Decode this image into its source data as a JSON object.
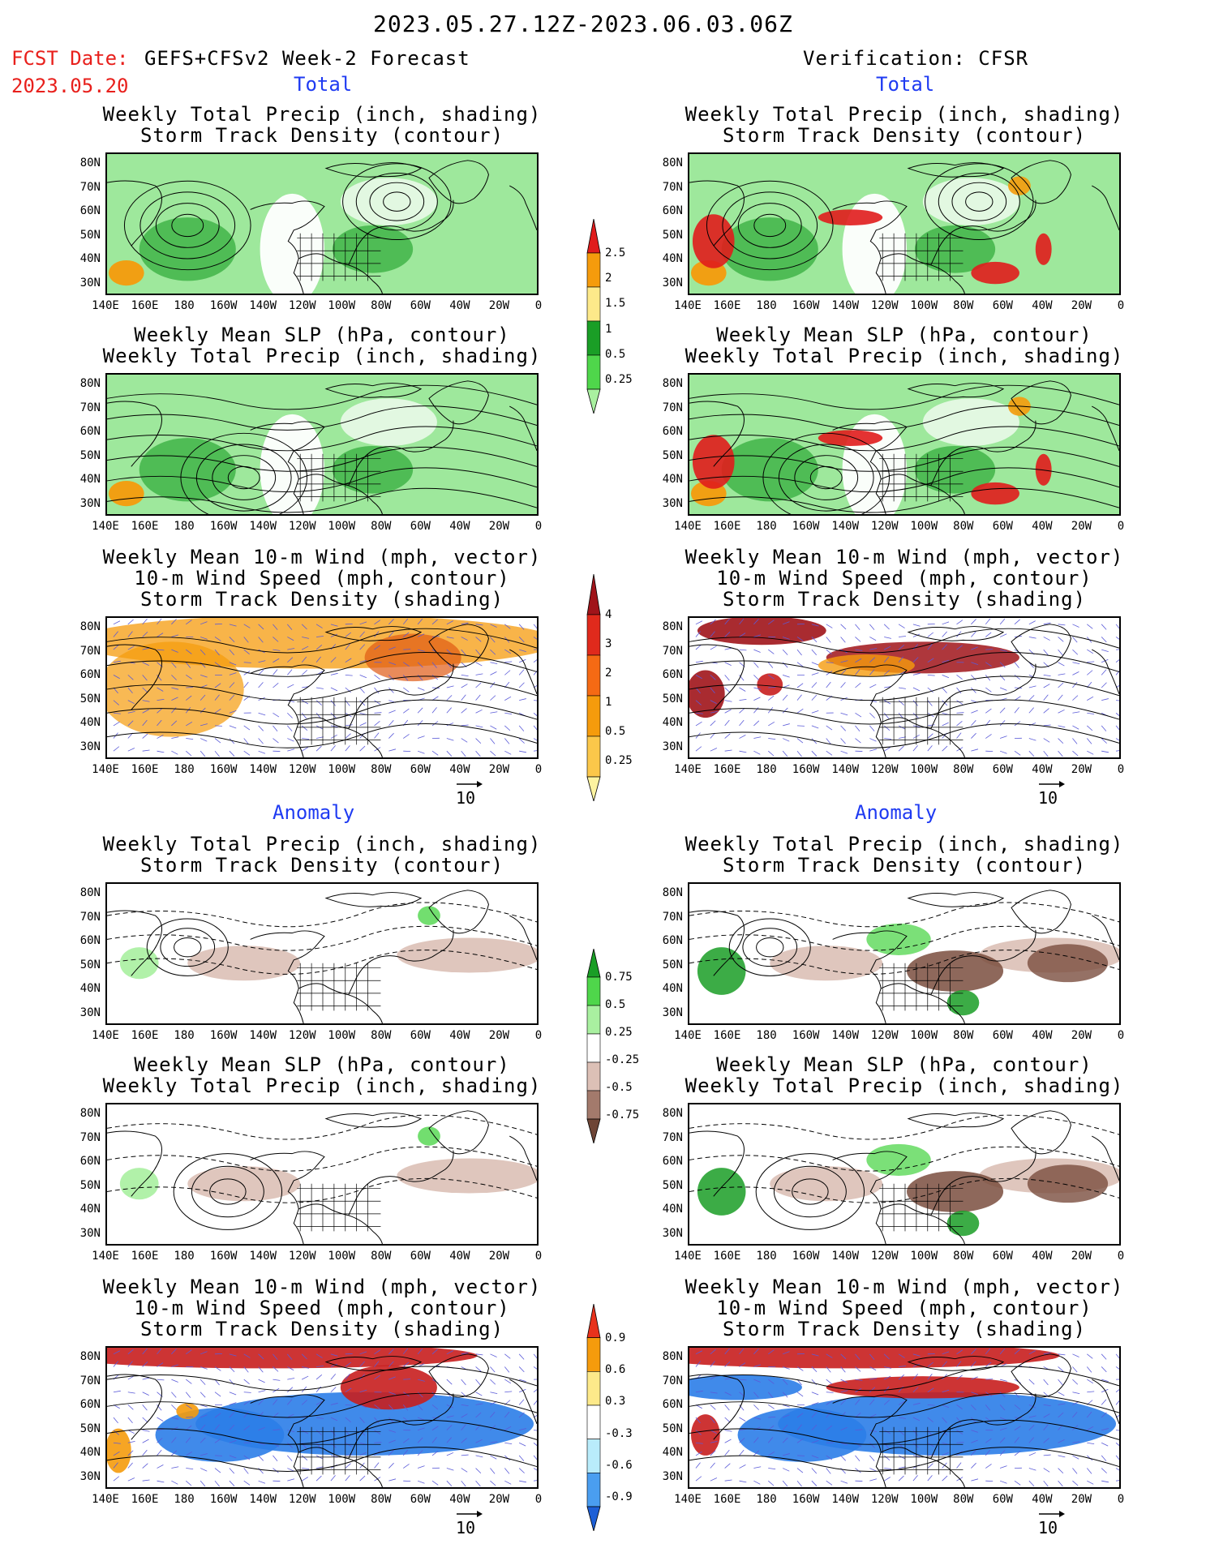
{
  "header": {
    "date_range": "2023.05.27.12Z-2023.06.03.06Z",
    "fcst_label": "FCST Date:",
    "fcst_date": "2023.05.20",
    "forecast_title": "GEFS+CFSv2 Week-2 Forecast",
    "verification_title": "Verification: CFSR"
  },
  "sections": {
    "total": "Total",
    "anomaly": "Anomaly"
  },
  "titles": {
    "precip_storm": [
      "Weekly Total Precip (inch, shading)",
      "Storm Track Density (contour)"
    ],
    "slp_precip": [
      "Weekly Mean SLP (hPa, contour)",
      "Weekly Total Precip (inch, shading)"
    ],
    "wind": [
      "Weekly Mean 10-m Wind (mph, vector)",
      "10-m Wind Speed (mph, contour)",
      "Storm Track Density (shading)"
    ]
  },
  "axes": {
    "lat_ticks": [
      "80N",
      "70N",
      "60N",
      "50N",
      "40N",
      "30N"
    ],
    "lon_ticks": [
      "140E",
      "160E",
      "180",
      "160W",
      "140W",
      "120W",
      "100W",
      "80W",
      "60W",
      "40W",
      "20W",
      "0"
    ]
  },
  "vector_ref": "10",
  "colorbars": {
    "total_precip": {
      "labels": [
        "2.5",
        "2",
        "1.5",
        "1",
        "0.5",
        "0.25"
      ],
      "colors": [
        "#e01c1c",
        "#f59b0c",
        "#fde98a",
        "#1a9e26",
        "#4fd64b",
        "#a9f0a0"
      ]
    },
    "total_storm": {
      "labels": [
        "4",
        "3",
        "2",
        "1",
        "0.5",
        "0.25"
      ],
      "colors": [
        "#a0141a",
        "#e02a1c",
        "#f56a14",
        "#f59b0c",
        "#fbc74a",
        "#fdf3a0"
      ]
    },
    "anom_precip": {
      "labels": [
        "0.75",
        "0.5",
        "0.25",
        "-0.25",
        "-0.5",
        "-0.75"
      ],
      "colors": [
        "#1a9e26",
        "#4fd64b",
        "#a9f0a0",
        "#ffffff",
        "#dcc0b6",
        "#a37a6c",
        "#6e4536"
      ]
    },
    "anom_storm": {
      "labels": [
        "0.9",
        "0.6",
        "0.3",
        "-0.3",
        "-0.6",
        "-0.9"
      ],
      "colors": [
        "#e8321c",
        "#f59b0c",
        "#fde98a",
        "#ffffff",
        "#b9ecfb",
        "#4a9ef0",
        "#1d5fd6"
      ]
    },
    "blank": ""
  },
  "map_colors": {
    "land_line": "#000000",
    "precip_light": "#a9f0a0",
    "precip_mid": "#4fd64b",
    "precip_dark": "#1a9e26",
    "precip_yellow": "#fde98a",
    "precip_orange": "#f59b0c",
    "precip_red": "#e01c1c",
    "storm_orange": "#f59b0c",
    "storm_light": "#fbc74a",
    "storm_red": "#c81e1e",
    "dry_light": "#dcc0b6",
    "dry_dark": "#7a4e3e",
    "anom_blue": "#2b7de8",
    "anom_lightblue": "#b9ecfb",
    "vector": "#5a5ad8"
  }
}
